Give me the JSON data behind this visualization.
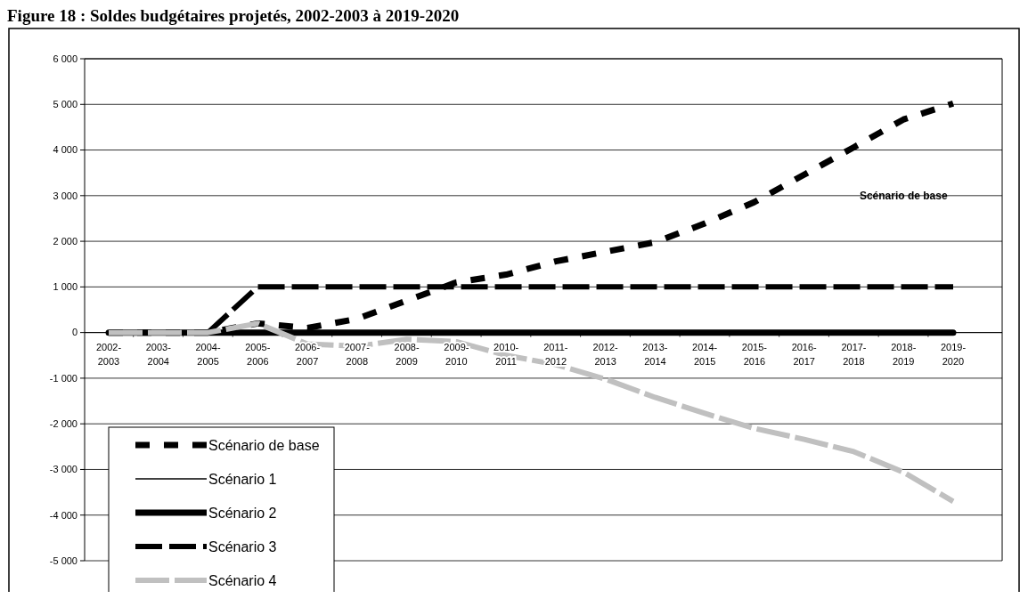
{
  "chart_data": {
    "type": "line",
    "title": "Figure 18 : Soldes budgétaires projetés, 2002-2003 à 2019-2020",
    "categories": [
      "2002-2003",
      "2003-2004",
      "2004-2005",
      "2005-2006",
      "2006-2007",
      "2007-2008",
      "2008-2009",
      "2009-2010",
      "2010-2011",
      "2011-2012",
      "2012-2013",
      "2013-2014",
      "2014-2015",
      "2015-2016",
      "2016-2017",
      "2017-2018",
      "2018-2019",
      "2019-2020"
    ],
    "series": [
      {
        "name": "Scénario de base",
        "color": "#000000",
        "line_style": "dashed",
        "values": [
          0,
          0,
          0,
          200,
          100,
          300,
          700,
          1100,
          1270,
          1560,
          1770,
          1980,
          2390,
          2860,
          3460,
          4060,
          4670,
          5020
        ]
      },
      {
        "name": "Scénario 1",
        "color": "#000000",
        "line_style": "solid",
        "values": [
          null,
          null,
          null,
          null,
          null,
          null,
          null,
          null,
          null,
          null,
          null,
          null,
          null,
          null,
          null,
          null,
          null,
          null
        ]
      },
      {
        "name": "Scénario 2",
        "color": "#000000",
        "line_style": "solid",
        "values": [
          0,
          0,
          0,
          0,
          0,
          0,
          0,
          0,
          0,
          0,
          0,
          0,
          0,
          0,
          0,
          0,
          0,
          0
        ]
      },
      {
        "name": "Scénario 3",
        "color": "#000000",
        "line_style": "dashed",
        "values": [
          null,
          null,
          0,
          1000,
          1000,
          1000,
          1000,
          1000,
          1000,
          1000,
          1000,
          1000,
          1000,
          1000,
          1000,
          1000,
          1000,
          1000
        ]
      },
      {
        "name": "Scénario 4",
        "color": "#c0c0c0",
        "line_style": "dashed",
        "values": [
          0,
          0,
          0,
          200,
          -250,
          -300,
          -150,
          -200,
          -500,
          -700,
          -1020,
          -1420,
          -1770,
          -2100,
          -2340,
          -2610,
          -3060,
          -3700
        ]
      }
    ],
    "ylim": [
      -5000,
      6000
    ],
    "yticks": [
      {
        "value": 6000,
        "label": "6 000"
      },
      {
        "value": 5000,
        "label": "5 000"
      },
      {
        "value": 4000,
        "label": "4 000"
      },
      {
        "value": 3000,
        "label": "3 000"
      },
      {
        "value": 2000,
        "label": "2 000"
      },
      {
        "value": 1000,
        "label": "1 000"
      },
      0,
      {
        "value": -1000,
        "label": "-1 000"
      },
      {
        "value": -2000,
        "label": "-2 000"
      },
      {
        "value": -3000,
        "label": "-3 000"
      },
      {
        "value": -4000,
        "label": "-4 000"
      },
      {
        "value": -5000,
        "label": "-5 000"
      }
    ],
    "grid": "y",
    "legend": "bottom left",
    "marker": "none",
    "annotations": [
      "Scénario de base"
    ]
  }
}
